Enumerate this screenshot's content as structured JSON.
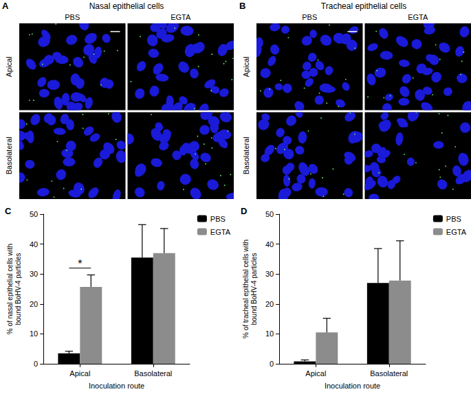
{
  "image_panels": [
    {
      "panel_label": "A",
      "title": "Nasal epithelial cells",
      "columns": [
        "PBS",
        "EGTA"
      ],
      "rows": [
        "Apical",
        "Basolateral"
      ]
    },
    {
      "panel_label": "B",
      "title": "Tracheal epithelial cells",
      "columns": [
        "PBS",
        "EGTA"
      ],
      "rows": [
        "Apical",
        "Basolateral"
      ]
    }
  ],
  "chart_data": [
    {
      "panel_label": "C",
      "type": "bar",
      "categories": [
        "Apical",
        "Basolateral"
      ],
      "x_label": "Inoculation route",
      "y_label": "% of nasal epithelial cells with\nbound BoHV-4 particles",
      "ylim": [
        0,
        50
      ],
      "yticks": [
        0,
        10,
        20,
        30,
        40,
        50
      ],
      "grid": false,
      "legend": "right",
      "series": [
        {
          "name": "PBS",
          "color": "#000000",
          "values": [
            3.5,
            35.5
          ],
          "errors": [
            0.7,
            11
          ]
        },
        {
          "name": "EGTA",
          "color": "#8c8c8c",
          "values": [
            25.7,
            37
          ],
          "errors": [
            4,
            8.2
          ]
        }
      ],
      "annotations": [
        {
          "text": "*",
          "category": "Apical"
        }
      ]
    },
    {
      "panel_label": "D",
      "type": "bar",
      "categories": [
        "Apical",
        "Basolateral"
      ],
      "x_label": "Inoculation route",
      "y_label": "% of tracheal epithelial cells with\nbound BoHV-4 particles",
      "ylim": [
        0,
        50
      ],
      "yticks": [
        0,
        10,
        20,
        30,
        40,
        50
      ],
      "grid": false,
      "legend": "right",
      "series": [
        {
          "name": "PBS",
          "color": "#000000",
          "values": [
            0.8,
            27
          ],
          "errors": [
            0.5,
            11.5
          ]
        },
        {
          "name": "EGTA",
          "color": "#8c8c8c",
          "values": [
            10.5,
            27.8
          ],
          "errors": [
            4.7,
            13.3
          ]
        }
      ],
      "annotations": []
    }
  ]
}
